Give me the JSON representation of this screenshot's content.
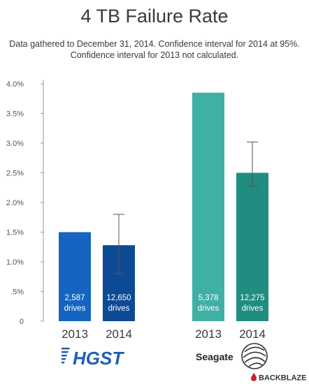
{
  "title": "4 TB Failure Rate",
  "subtitle": "Data gathered to December 31, 2014. Confidence interval for 2014 at 95%. Confidence interval for 2013 not calculated.",
  "chart_data": {
    "type": "bar",
    "title": "4 TB Failure Rate",
    "subtitle": "Data gathered to December 31, 2014. Confidence interval for 2014 at 95%. Confidence interval for 2013 not calculated.",
    "ylim": [
      0,
      4.0
    ],
    "yticks": [
      0,
      0.5,
      1.0,
      1.5,
      2.0,
      2.5,
      3.0,
      3.5,
      4.0
    ],
    "ytick_labels": [
      "0",
      ".5%",
      "1.0%",
      "1.5%",
      "2.0%",
      "2.5%",
      "3.0%",
      "3.5%",
      "4.0%"
    ],
    "grid": false,
    "groups": [
      {
        "brand": "HGST",
        "bars": [
          {
            "year": "2013",
            "value": 1.5,
            "drives": "2,587",
            "drives_unit": "drives",
            "color": "#1565c0",
            "error": null
          },
          {
            "year": "2014",
            "value": 1.28,
            "drives": "12,650",
            "drives_unit": "drives",
            "color": "#0d4a96",
            "error": [
              0.8,
              1.8
            ]
          }
        ]
      },
      {
        "brand": "Seagate",
        "bars": [
          {
            "year": "2013",
            "value": 3.85,
            "drives": "5,378",
            "drives_unit": "drives",
            "color": "#3fb0a4",
            "error": null
          },
          {
            "year": "2014",
            "value": 2.5,
            "drives": "12,275",
            "drives_unit": "drives",
            "color": "#1f8d80",
            "error": [
              2.27,
              3.02
            ]
          }
        ]
      }
    ]
  },
  "logos": {
    "hgst": "HGST",
    "seagate": "Seagate",
    "backblaze": "BACKBLAZE"
  },
  "colors": {
    "axis": "#999999",
    "hgst_logo": "#1d5fb4",
    "backblaze_red": "#d0202e"
  }
}
